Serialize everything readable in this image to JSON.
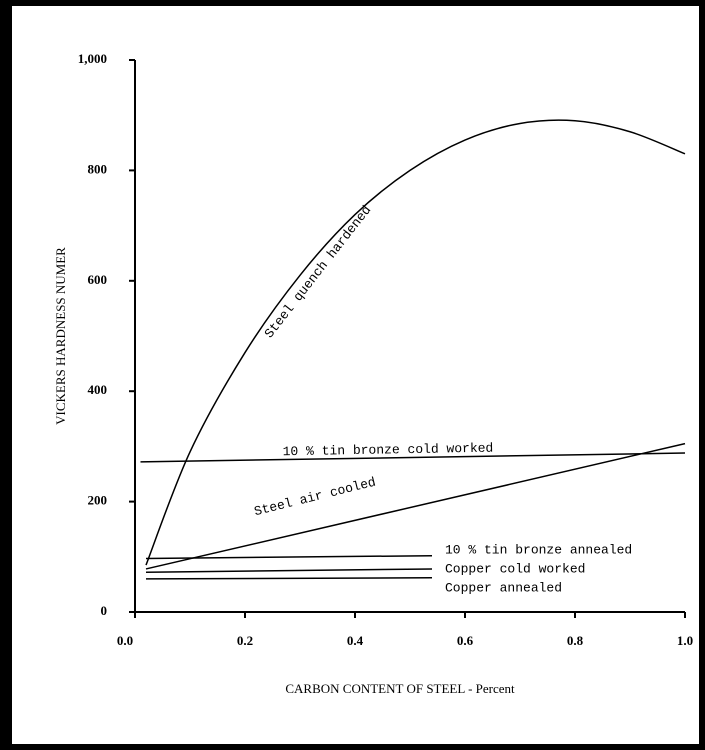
{
  "chart_data": {
    "type": "line",
    "xlabel": "CARBON CONTENT OF STEEL - Percent",
    "ylabel": "VICKERS HARDNESS NUMER",
    "xlim": [
      0,
      1.0
    ],
    "ylim": [
      0,
      1000
    ],
    "xticks": [
      {
        "value": 0,
        "label": "0.0"
      },
      0.2,
      0.4,
      0.6,
      0.8,
      {
        "value": 1.0,
        "label": "1.0"
      }
    ],
    "yticks": [
      0,
      200,
      400,
      600,
      800,
      {
        "value": 1000,
        "label": "1,000"
      }
    ],
    "series": [
      {
        "name": "Steel quench hardened",
        "color": "#000000",
        "x": [
          0.02,
          0.1,
          0.2,
          0.3,
          0.4,
          0.5,
          0.6,
          0.7,
          0.8,
          0.9,
          1.0
        ],
        "values": [
          85,
          290,
          470,
          610,
          720,
          800,
          855,
          885,
          890,
          870,
          830
        ]
      },
      {
        "name": "10 % tin bronze cold worked",
        "color": "#000000",
        "x": [
          0.01,
          1.0
        ],
        "values": [
          272,
          288
        ]
      },
      {
        "name": "Steel air cooled",
        "color": "#000000",
        "x": [
          0.02,
          1.0
        ],
        "values": [
          78,
          305
        ]
      },
      {
        "name": "10 % tin bronze annealed",
        "color": "#000000",
        "x": [
          0.02,
          0.54
        ],
        "values": [
          97,
          102
        ]
      },
      {
        "name": "Copper cold worked",
        "color": "#000000",
        "x": [
          0.02,
          0.54
        ],
        "values": [
          72,
          78
        ]
      },
      {
        "name": "Copper annealed",
        "color": "#000000",
        "x": [
          0.02,
          0.54
        ],
        "values": [
          60,
          62
        ]
      }
    ]
  }
}
